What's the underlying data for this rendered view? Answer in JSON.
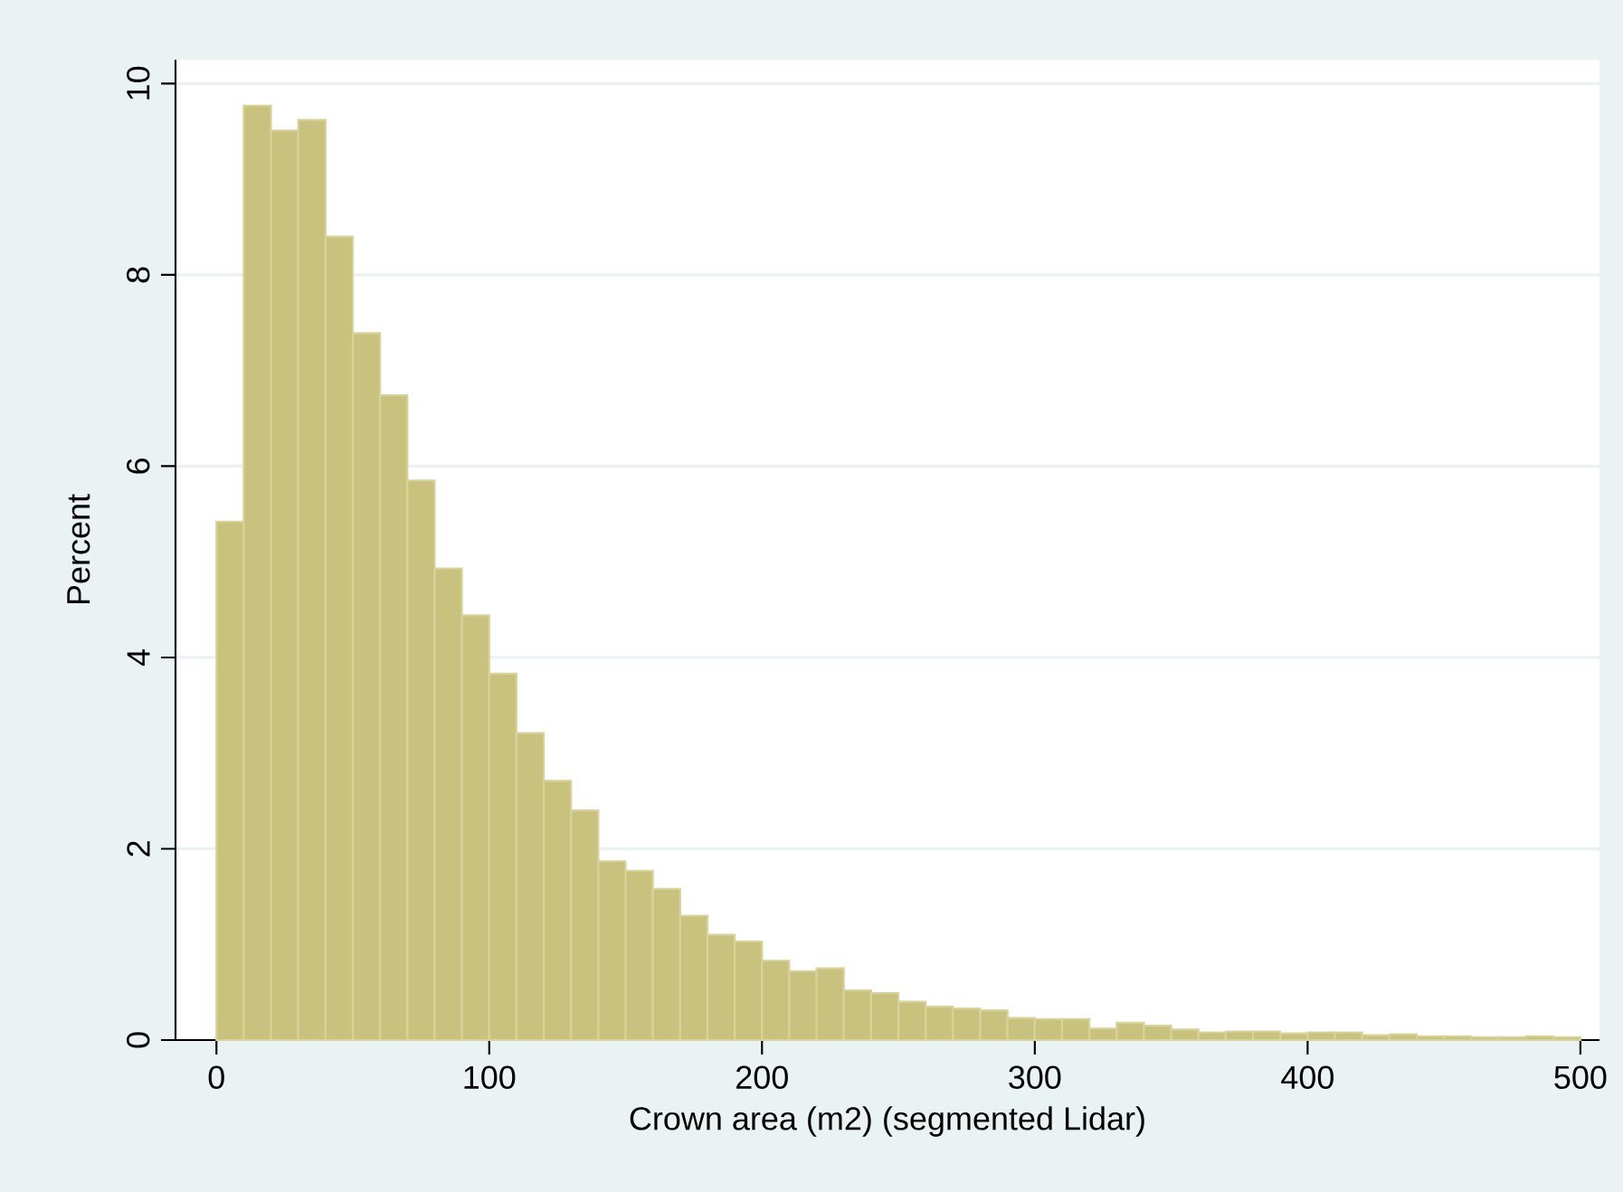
{
  "chart_data": {
    "type": "histogram",
    "xlabel": "Crown area (m2) (segmented Lidar)",
    "ylabel": "Percent",
    "bins": [
      0,
      10,
      20,
      30,
      40,
      50,
      60,
      70,
      80,
      90,
      100,
      110,
      120,
      130,
      140,
      150,
      160,
      170,
      180,
      190,
      200,
      210,
      220,
      230,
      240,
      250,
      260,
      270,
      280,
      290,
      300,
      310,
      320,
      330,
      340,
      350,
      360,
      370,
      380,
      390,
      400,
      410,
      420,
      430,
      440,
      450,
      460,
      470,
      480,
      490,
      500
    ],
    "values": [
      5.42,
      9.77,
      9.51,
      9.62,
      8.4,
      7.39,
      6.74,
      5.85,
      4.93,
      4.44,
      3.83,
      3.21,
      2.71,
      2.4,
      1.87,
      1.77,
      1.58,
      1.3,
      1.1,
      1.03,
      0.83,
      0.72,
      0.75,
      0.52,
      0.49,
      0.4,
      0.35,
      0.33,
      0.31,
      0.23,
      0.22,
      0.22,
      0.12,
      0.18,
      0.15,
      0.11,
      0.08,
      0.09,
      0.09,
      0.07,
      0.08,
      0.08,
      0.05,
      0.06,
      0.04,
      0.04,
      0.03,
      0.03,
      0.04,
      0.03
    ],
    "color": "#c9c27f",
    "xlim": [
      -15,
      507
    ],
    "ylim": [
      0,
      10.25
    ],
    "xticks": [
      0,
      100,
      200,
      300,
      400,
      500
    ],
    "yticks": [
      0,
      2,
      4,
      6,
      8,
      10
    ],
    "grid": "y"
  }
}
